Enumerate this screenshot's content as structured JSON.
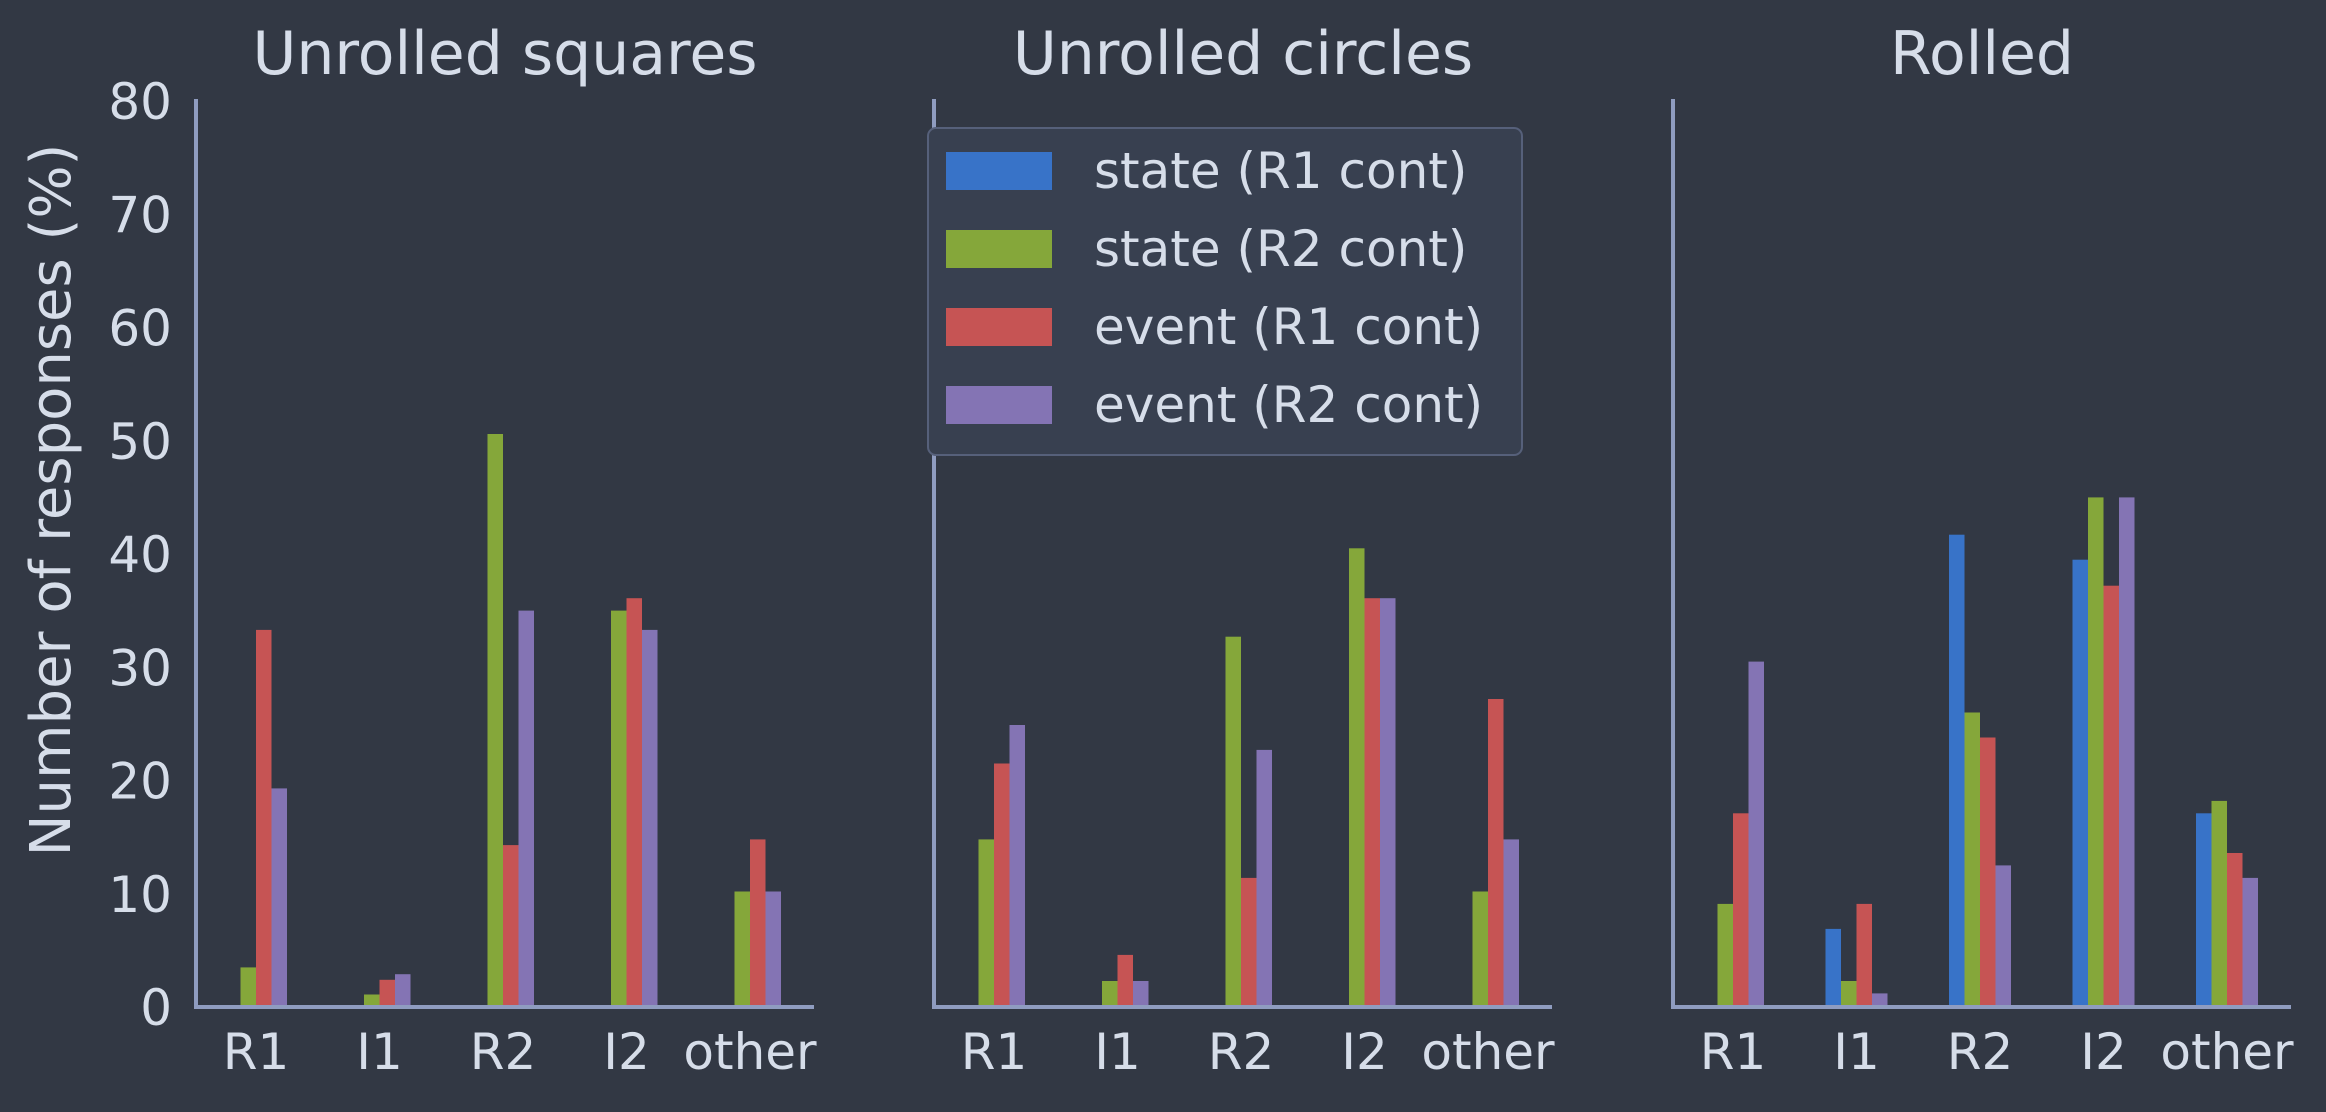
{
  "chart_data": {
    "type": "bar",
    "ylabel": "Number of responses (%)",
    "ylim": [
      0,
      80
    ],
    "yticks": [
      0,
      10,
      20,
      30,
      40,
      50,
      60,
      70,
      80
    ],
    "categories": [
      "R1",
      "I1",
      "R2",
      "I2",
      "other"
    ],
    "series_names": [
      "state (R1 cont)",
      "state (R2 cont)",
      "event (R1 cont)",
      "event (R2 cont)"
    ],
    "colors": [
      "#3873c8",
      "#85a73a",
      "#c65454",
      "#8474b4"
    ],
    "legend": {
      "placement": "upper-right of middle panel"
    },
    "grid": false,
    "panels": [
      {
        "title": "Unrolled squares",
        "series": [
          {
            "name": "state (R1 cont)",
            "values": [
              0,
              0,
              0,
              0,
              0
            ]
          },
          {
            "name": "state (R2 cont)",
            "values": [
              3.5,
              1.1,
              50.6,
              35,
              10.2
            ]
          },
          {
            "name": "event (R1 cont)",
            "values": [
              33.3,
              2.4,
              14.3,
              36.1,
              14.8
            ]
          },
          {
            "name": "event (R2 cont)",
            "values": [
              19.3,
              2.9,
              35,
              33.3,
              10.2
            ]
          }
        ]
      },
      {
        "title": "Unrolled circles",
        "series": [
          {
            "name": "state (R1 cont)",
            "values": [
              0,
              0,
              0,
              0,
              0
            ]
          },
          {
            "name": "state (R2 cont)",
            "values": [
              14.8,
              2.3,
              32.7,
              40.5,
              10.2
            ]
          },
          {
            "name": "event (R1 cont)",
            "values": [
              21.5,
              4.6,
              11.4,
              36.1,
              27.2
            ]
          },
          {
            "name": "event (R2 cont)",
            "values": [
              24.9,
              2.3,
              22.7,
              36.1,
              14.8
            ]
          }
        ]
      },
      {
        "title": "Rolled",
        "series": [
          {
            "name": "state (R1 cont)",
            "values": [
              0,
              6.9,
              41.7,
              39.5,
              17.1
            ]
          },
          {
            "name": "state (R2 cont)",
            "values": [
              9.1,
              2.3,
              26,
              45,
              18.2
            ]
          },
          {
            "name": "event (R1 cont)",
            "values": [
              17.1,
              9.1,
              23.8,
              37.2,
              13.6
            ]
          },
          {
            "name": "event (R2 cont)",
            "values": [
              30.5,
              1.2,
              12.5,
              45,
              11.4
            ]
          }
        ]
      }
    ]
  }
}
